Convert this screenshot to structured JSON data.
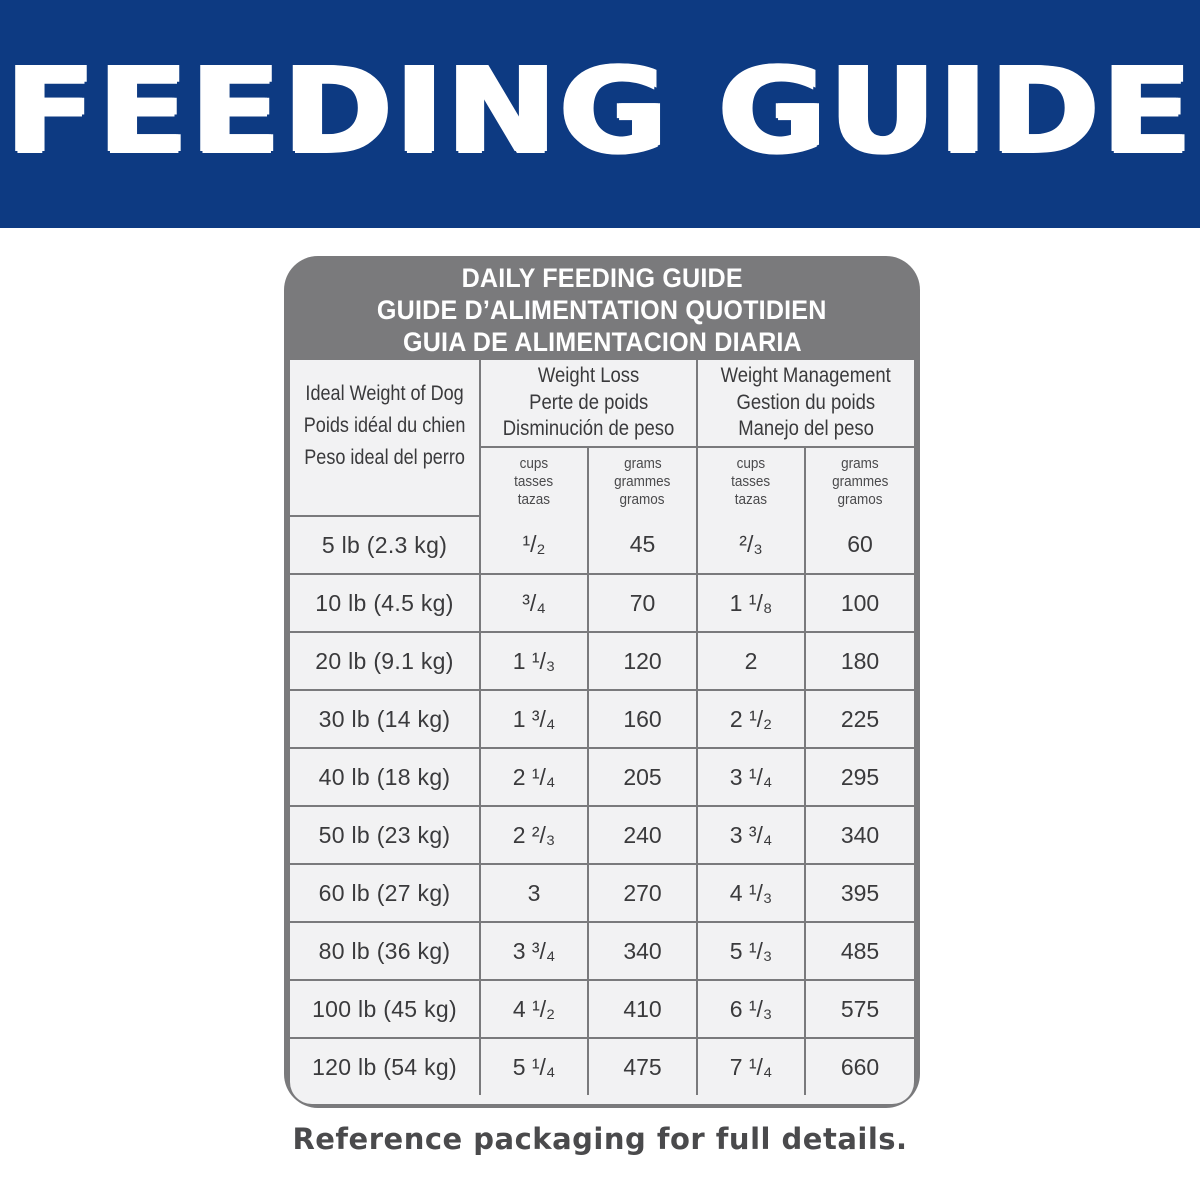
{
  "banner": {
    "title": "FEEDING GUIDE",
    "bg_color": "#0d3a82"
  },
  "card": {
    "title_lines": [
      "DAILY FEEDING GUIDE",
      "GUIDE D’ALIMENTATION QUOTIDIEN",
      "GUIA DE ALIMENTACION DIARIA"
    ],
    "frame_color": "#7a7a7c"
  },
  "table": {
    "weight_header": [
      "Ideal Weight of Dog",
      "Poids idéal du chien",
      "Peso ideal del perro"
    ],
    "groups": [
      {
        "lines": [
          "Weight Loss",
          "Perte de poids",
          "Disminución de peso"
        ]
      },
      {
        "lines": [
          "Weight Management",
          "Gestion du poids",
          "Manejo del peso"
        ]
      }
    ],
    "units": [
      [
        "cups",
        "tasses",
        "tazas"
      ],
      [
        "grams",
        "grammes",
        "gramos"
      ],
      [
        "cups",
        "tasses",
        "tazas"
      ],
      [
        "grams",
        "grammes",
        "gramos"
      ]
    ],
    "rows": [
      {
        "weight": "5 lb (2.3 kg)",
        "loss_cups": "¹/₂",
        "loss_grams": "45",
        "mgmt_cups": "²/₃",
        "mgmt_grams": "60"
      },
      {
        "weight": "10 lb (4.5 kg)",
        "loss_cups": "³/₄",
        "loss_grams": "70",
        "mgmt_cups": "1 ¹/₈",
        "mgmt_grams": "100"
      },
      {
        "weight": "20 lb (9.1 kg)",
        "loss_cups": "1 ¹/₃",
        "loss_grams": "120",
        "mgmt_cups": "2",
        "mgmt_grams": "180"
      },
      {
        "weight": "30 lb (14 kg)",
        "loss_cups": "1 ³/₄",
        "loss_grams": "160",
        "mgmt_cups": "2 ¹/₂",
        "mgmt_grams": "225"
      },
      {
        "weight": "40 lb (18 kg)",
        "loss_cups": "2 ¹/₄",
        "loss_grams": "205",
        "mgmt_cups": "3 ¹/₄",
        "mgmt_grams": "295"
      },
      {
        "weight": "50 lb (23 kg)",
        "loss_cups": "2 ²/₃",
        "loss_grams": "240",
        "mgmt_cups": "3 ³/₄",
        "mgmt_grams": "340"
      },
      {
        "weight": "60 lb (27 kg)",
        "loss_cups": "3",
        "loss_grams": "270",
        "mgmt_cups": "4 ¹/₃",
        "mgmt_grams": "395"
      },
      {
        "weight": "80 lb (36 kg)",
        "loss_cups": "3 ³/₄",
        "loss_grams": "340",
        "mgmt_cups": "5 ¹/₃",
        "mgmt_grams": "485"
      },
      {
        "weight": "100 lb (45 kg)",
        "loss_cups": "4 ¹/₂",
        "loss_grams": "410",
        "mgmt_cups": "6 ¹/₃",
        "mgmt_grams": "575"
      },
      {
        "weight": "120 lb (54 kg)",
        "loss_cups": "5 ¹/₄",
        "loss_grams": "475",
        "mgmt_cups": "7 ¹/₄",
        "mgmt_grams": "660"
      }
    ]
  },
  "footnote": "Reference packaging for full details."
}
